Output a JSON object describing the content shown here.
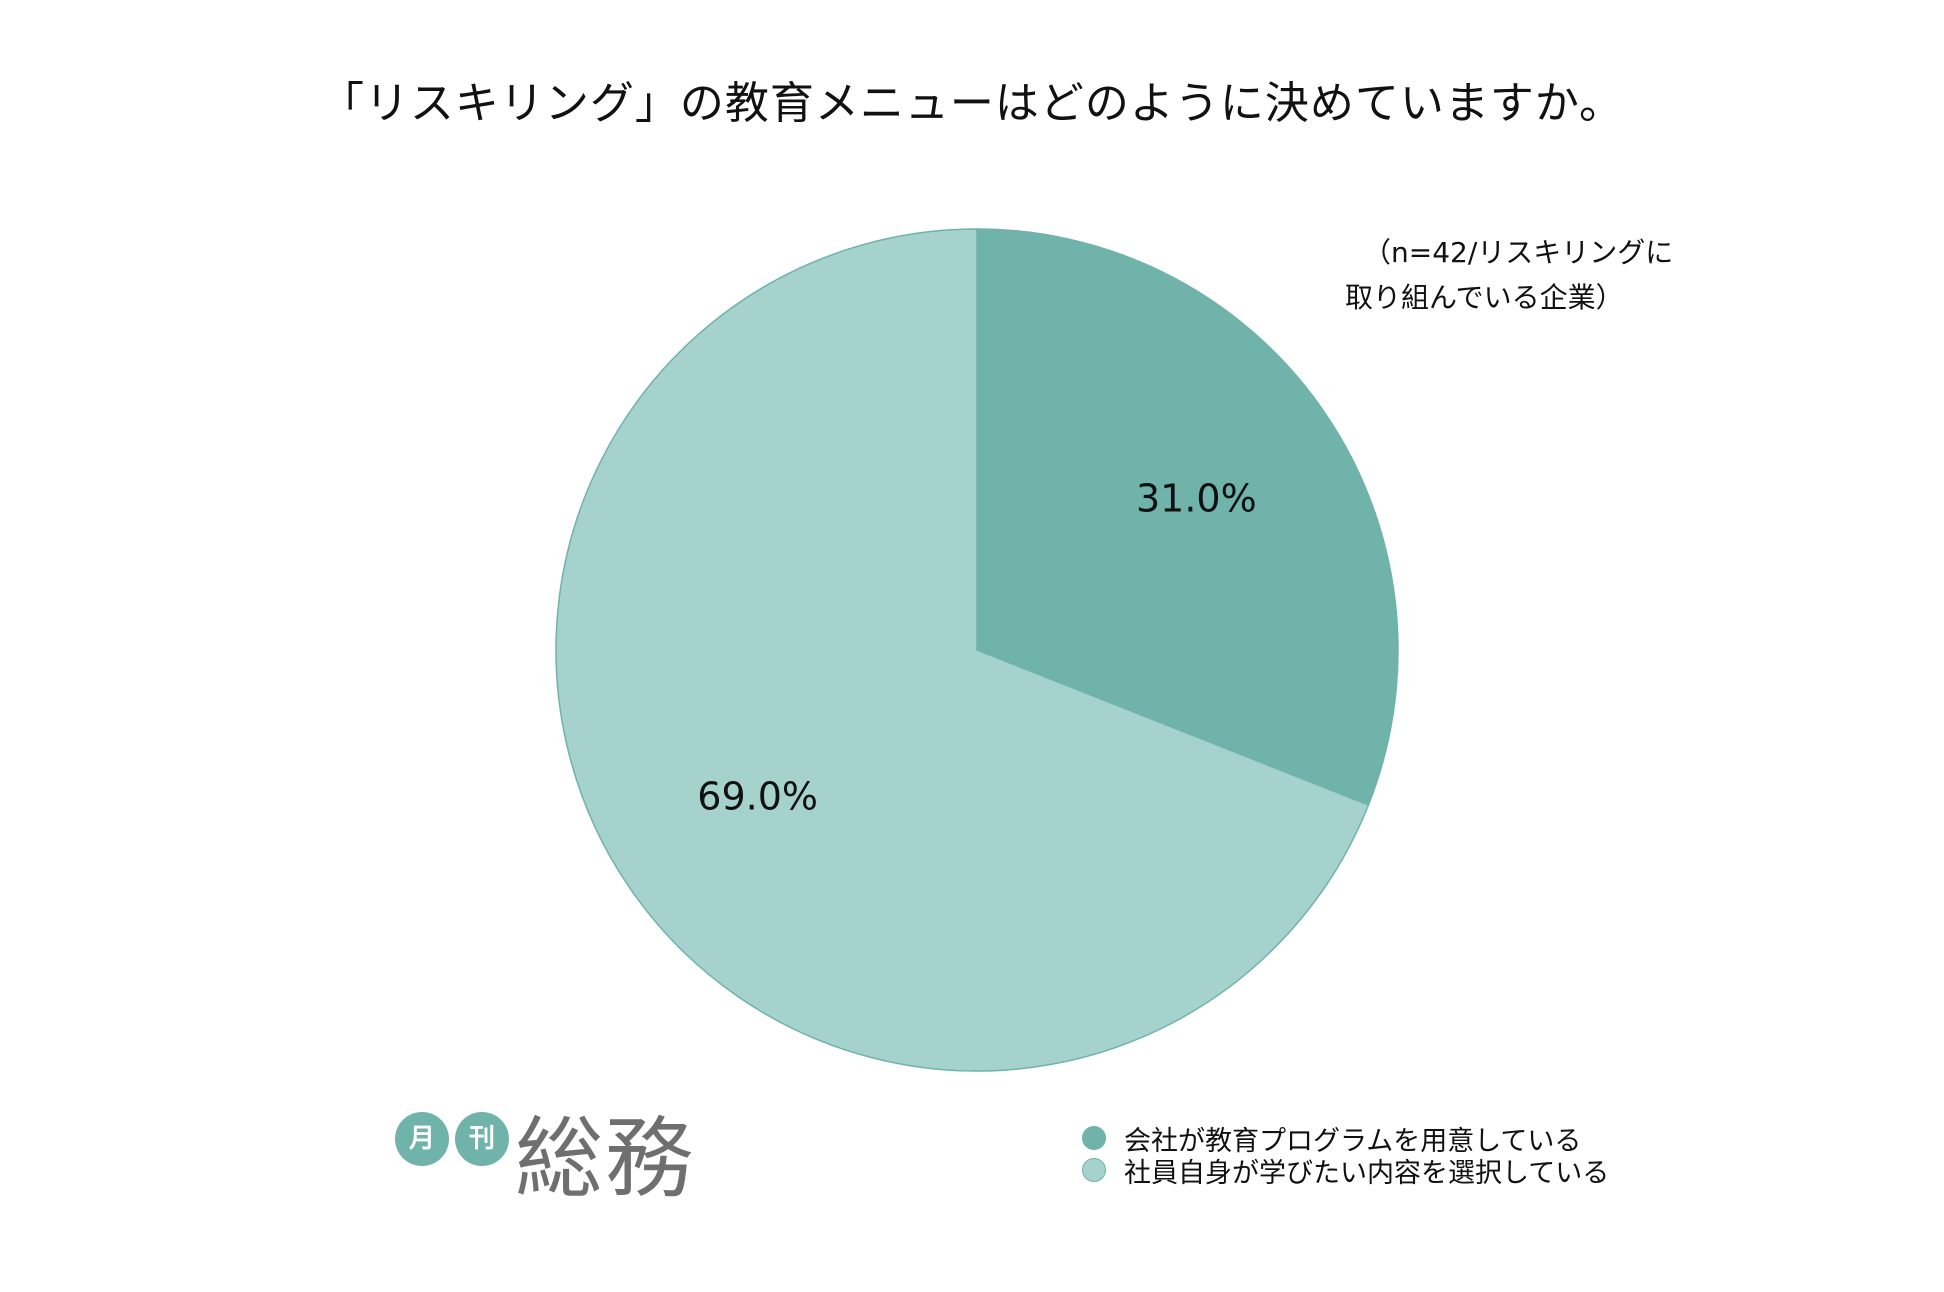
{
  "chart_data": {
    "type": "pie",
    "title": "「リスキリング」の教育メニューはどのように決めていますか。",
    "note": [
      "（n=42/リスキリングに",
      "取り組んでいる企業）"
    ],
    "categories": [
      "会社が教育プログラムを用意している",
      "社員自身が学びたい内容を選択している"
    ],
    "values": [
      31.0,
      69.0
    ],
    "value_labels": [
      "31.0%",
      "69.0%"
    ],
    "colors": [
      "#6fb3ab",
      "#a5d2cc"
    ],
    "legend_position": "bottom-right",
    "start_angle": "12-o'clock",
    "direction": "clockwise"
  },
  "logo": {
    "badge_1": "月",
    "badge_2": "刊",
    "wordmark": "総務"
  }
}
